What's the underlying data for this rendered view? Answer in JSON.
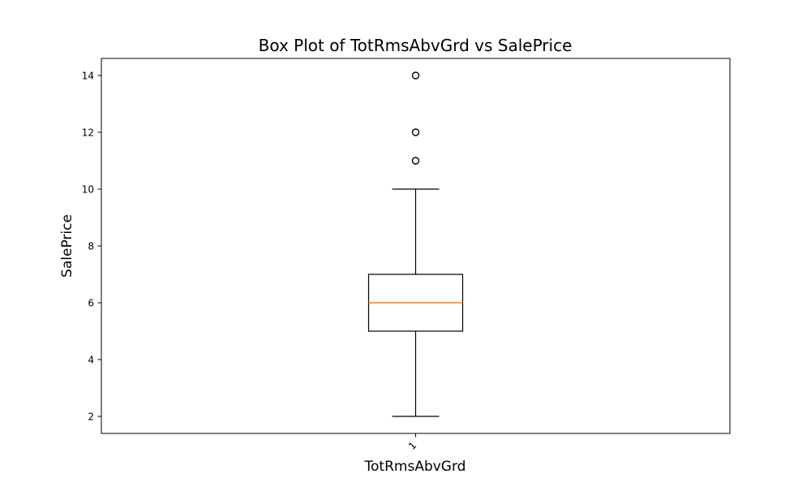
{
  "chart_data": {
    "type": "box",
    "title": "Box Plot of TotRmsAbvGrd vs SalePrice",
    "xlabel": "TotRmsAbvGrd",
    "ylabel": "SalePrice",
    "categories": [
      "1"
    ],
    "ylim": [
      1.4,
      14.6
    ],
    "yticks": [
      2,
      4,
      6,
      8,
      10,
      12,
      14
    ],
    "ytick_labels": [
      "2",
      "4",
      "6",
      "8",
      "10",
      "12",
      "14"
    ],
    "boxes": [
      {
        "category": "1",
        "whisker_low": 2,
        "q1": 5,
        "median": 6,
        "q3": 7,
        "whisker_high": 10,
        "outliers": [
          11,
          12,
          14
        ]
      }
    ],
    "grid": false,
    "colors": {
      "box": "#000000",
      "median": "#ff7f0e",
      "background": "#ffffff"
    }
  }
}
